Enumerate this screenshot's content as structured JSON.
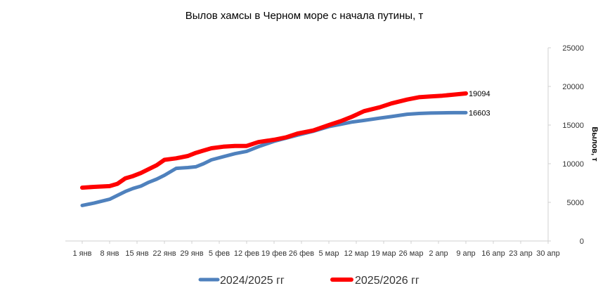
{
  "chart_data": {
    "type": "line",
    "title": "Вылов хамсы в Черном море с начала путины, т",
    "ylabel": "Вылов, т",
    "xlabel": "",
    "ylim": [
      0,
      25000
    ],
    "yticks": [
      0,
      5000,
      10000,
      15000,
      20000,
      25000
    ],
    "grid": false,
    "legend_position": "bottom",
    "x_tick_labels": [
      "1 янв",
      "8 янв",
      "15 янв",
      "22 янв",
      "29 янв",
      "5 фев",
      "12 фев",
      "19 фев",
      "26 фев",
      "5 мар",
      "12 мар",
      "19 мар",
      "26 мар",
      "2 апр",
      "9 апр",
      "16 апр",
      "23 апр",
      "30 апр"
    ],
    "x_day_index": [
      1,
      4,
      8,
      10,
      12,
      14,
      16,
      18,
      20,
      22,
      25,
      28,
      30,
      32,
      34,
      37,
      40,
      43,
      46,
      50,
      53,
      56,
      60,
      64,
      67,
      70,
      73,
      77,
      80,
      84,
      87,
      90,
      93,
      96,
      99
    ],
    "series": [
      {
        "name": "2024/2025 гг",
        "color": "#4F81BD",
        "end_label": "16603",
        "values": [
          4600,
          4900,
          5400,
          5900,
          6400,
          6800,
          7100,
          7600,
          8000,
          8500,
          9400,
          9500,
          9600,
          10000,
          10500,
          10900,
          11300,
          11600,
          12200,
          12900,
          13300,
          13700,
          14200,
          14800,
          15100,
          15400,
          15600,
          15900,
          16100,
          16400,
          16500,
          16550,
          16580,
          16600,
          16603
        ]
      },
      {
        "name": "2025/2026 гг",
        "color": "#FF0000",
        "end_label": "19094",
        "values": [
          6900,
          7000,
          7100,
          7400,
          8100,
          8400,
          8800,
          9300,
          9800,
          10500,
          10700,
          11000,
          11400,
          11700,
          12000,
          12200,
          12300,
          12300,
          12800,
          13100,
          13400,
          13900,
          14300,
          15000,
          15500,
          16100,
          16800,
          17300,
          17800,
          18300,
          18600,
          18700,
          18800,
          18950,
          19094
        ]
      }
    ]
  }
}
